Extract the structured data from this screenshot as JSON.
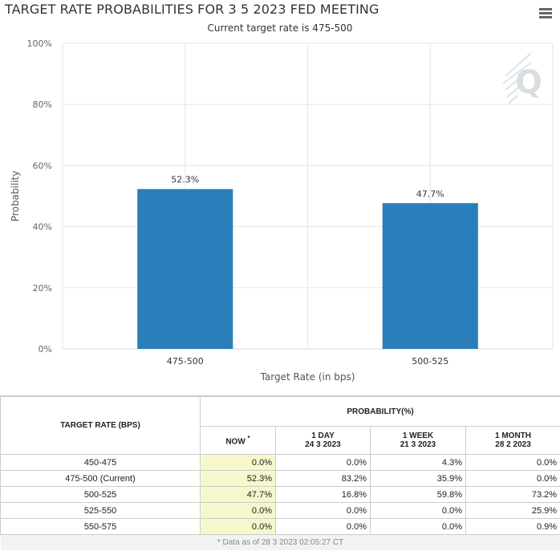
{
  "chart": {
    "title": "TARGET RATE PROBABILITIES FOR 3 5 2023 FED MEETING",
    "subtitle": "Current target rate is 475-500"
  },
  "chart_data": {
    "type": "bar",
    "title": "TARGET RATE PROBABILITIES FOR 3 5 2023 FED MEETING",
    "subtitle": "Current target rate is 475-500",
    "categories": [
      "475-500",
      "500-525"
    ],
    "values": [
      52.3,
      47.7
    ],
    "data_labels": [
      "52.3%",
      "47.7%"
    ],
    "xlabel": "Target Rate (in bps)",
    "ylabel": "Probability",
    "ylim": [
      0,
      100
    ],
    "yticks": [
      "0%",
      "20%",
      "40%",
      "60%",
      "80%",
      "100%"
    ],
    "grid": true,
    "bar_color": "#2a7fba"
  },
  "table": {
    "header_rate": "TARGET RATE (BPS)",
    "header_prob": "PROBABILITY(%)",
    "col_now": "NOW",
    "col_now_mark": "*",
    "col_1day": "1 DAY",
    "col_1day_date": "24 3 2023",
    "col_1week": "1 WEEK",
    "col_1week_date": "21 3 2023",
    "col_1month": "1 MONTH",
    "col_1month_date": "28 2 2023",
    "rows": [
      {
        "rate": "450-475",
        "now": "0.0%",
        "day": "0.0%",
        "week": "4.3%",
        "month": "0.0%"
      },
      {
        "rate": "475-500 (Current)",
        "now": "52.3%",
        "day": "83.2%",
        "week": "35.9%",
        "month": "0.0%"
      },
      {
        "rate": "500-525",
        "now": "47.7%",
        "day": "16.8%",
        "week": "59.8%",
        "month": "73.2%"
      },
      {
        "rate": "525-550",
        "now": "0.0%",
        "day": "0.0%",
        "week": "0.0%",
        "month": "25.9%"
      },
      {
        "rate": "550-575",
        "now": "0.0%",
        "day": "0.0%",
        "week": "0.0%",
        "month": "0.9%"
      }
    ],
    "footnote": "* Data as of 28 3 2023 02:05:27 CT"
  }
}
